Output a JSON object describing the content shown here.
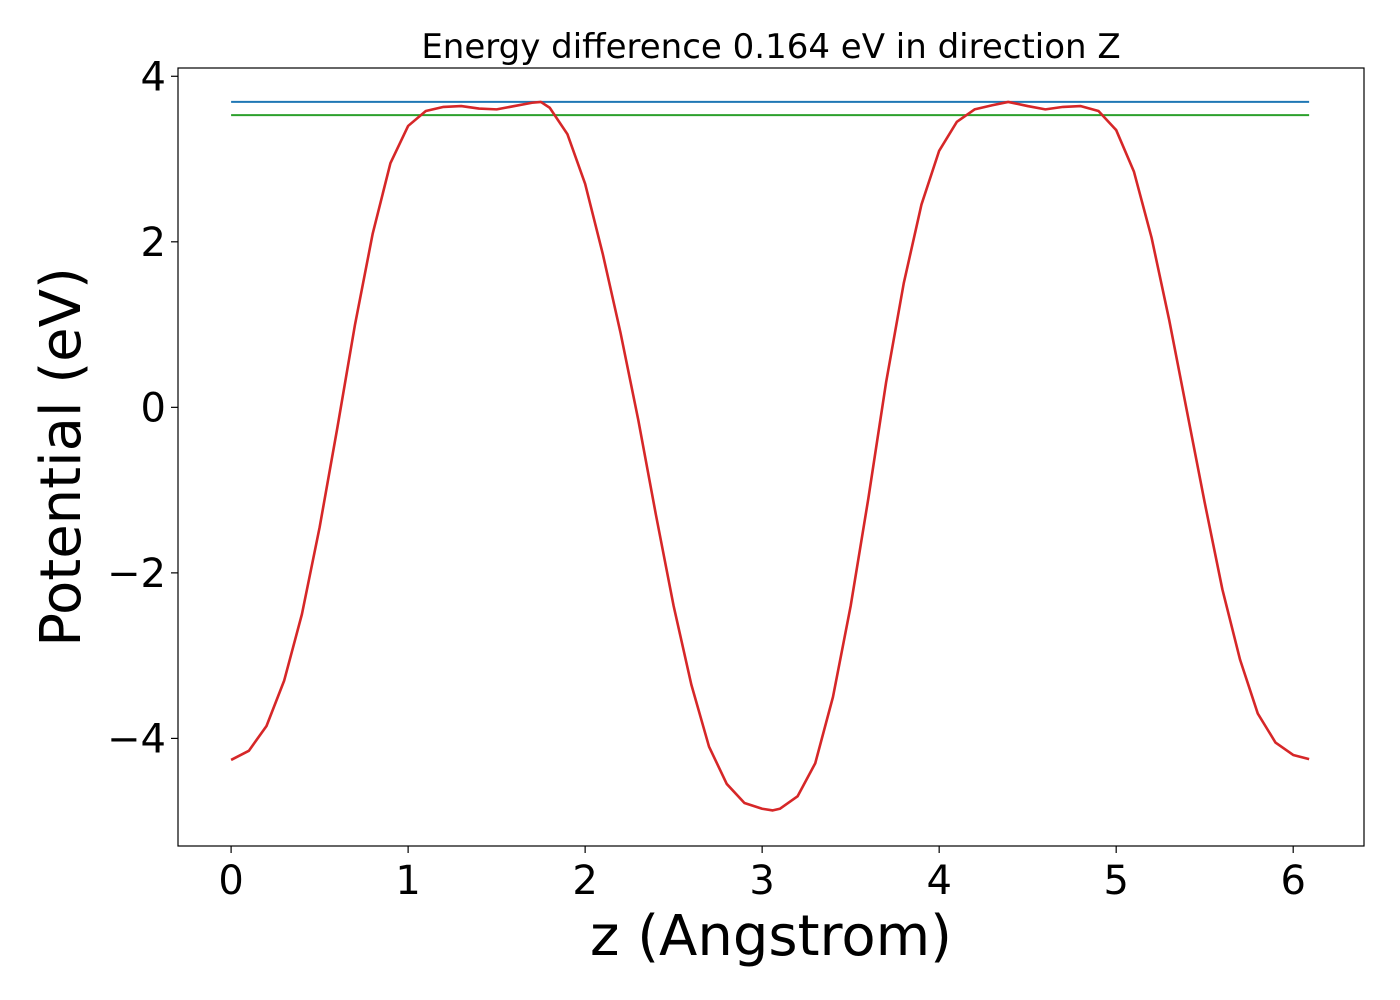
{
  "chart_data": {
    "type": "line",
    "title": "Energy difference 0.164 eV in direction Z",
    "xlabel": "z (Angstrom)",
    "ylabel": "Potential (eV)",
    "xlim": [
      -0.3,
      6.4
    ],
    "ylim": [
      -5.3,
      4.1
    ],
    "x_ticks": [
      0,
      1,
      2,
      3,
      4,
      5,
      6
    ],
    "y_ticks": [
      -4,
      -2,
      0,
      2,
      4
    ],
    "x_tick_labels": [
      "0",
      "1",
      "2",
      "3",
      "4",
      "5",
      "6"
    ],
    "y_tick_labels": [
      "−4",
      "−2",
      "0",
      "2",
      "4"
    ],
    "grid": false,
    "series": [
      {
        "color": "#1f77b4",
        "x": [
          0.0,
          6.09
        ],
        "y": [
          3.69,
          3.69
        ]
      },
      {
        "color": "#2ca02c",
        "x": [
          0.0,
          6.09
        ],
        "y": [
          3.53,
          3.53
        ]
      },
      {
        "color": "#d62728",
        "x": [
          0.0,
          0.1,
          0.2,
          0.3,
          0.4,
          0.5,
          0.6,
          0.7,
          0.8,
          0.9,
          1.0,
          1.1,
          1.2,
          1.3,
          1.4,
          1.5,
          1.6,
          1.7,
          1.75,
          1.8,
          1.9,
          2.0,
          2.1,
          2.2,
          2.3,
          2.4,
          2.5,
          2.6,
          2.7,
          2.8,
          2.9,
          3.0,
          3.06,
          3.1,
          3.2,
          3.3,
          3.4,
          3.5,
          3.6,
          3.7,
          3.8,
          3.9,
          4.0,
          4.1,
          4.2,
          4.3,
          4.39,
          4.5,
          4.6,
          4.7,
          4.8,
          4.9,
          5.0,
          5.1,
          5.2,
          5.3,
          5.4,
          5.5,
          5.6,
          5.7,
          5.8,
          5.9,
          6.0,
          6.09
        ],
        "y": [
          -4.26,
          -4.15,
          -3.85,
          -3.3,
          -2.5,
          -1.45,
          -0.25,
          1.0,
          2.1,
          2.95,
          3.4,
          3.58,
          3.63,
          3.64,
          3.61,
          3.6,
          3.64,
          3.68,
          3.69,
          3.62,
          3.3,
          2.7,
          1.85,
          0.9,
          -0.15,
          -1.3,
          -2.4,
          -3.35,
          -4.1,
          -4.55,
          -4.78,
          -4.85,
          -4.87,
          -4.85,
          -4.7,
          -4.3,
          -3.5,
          -2.4,
          -1.1,
          0.3,
          1.5,
          2.45,
          3.1,
          3.45,
          3.6,
          3.65,
          3.69,
          3.64,
          3.6,
          3.63,
          3.64,
          3.58,
          3.35,
          2.85,
          2.05,
          1.05,
          -0.05,
          -1.15,
          -2.2,
          -3.05,
          -3.7,
          -4.05,
          -4.2,
          -4.25
        ]
      }
    ]
  }
}
